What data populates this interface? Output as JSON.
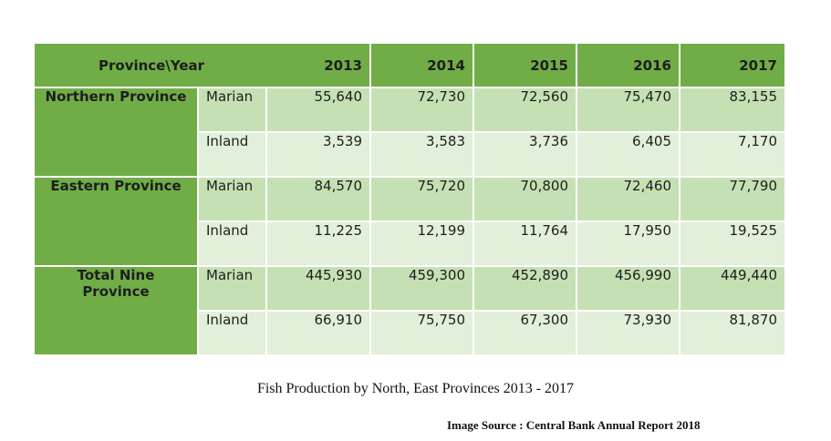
{
  "table": {
    "corner_label": "Province\\Year",
    "years": [
      "2013",
      "2014",
      "2015",
      "2016",
      "2017"
    ],
    "groups": [
      {
        "province": "Northern Province",
        "rows": [
          {
            "type": "Marian",
            "values": [
              "55,640",
              "72,730",
              "72,560",
              "75,470",
              "83,155"
            ]
          },
          {
            "type": "Inland",
            "values": [
              "3,539",
              "3,583",
              "3,736",
              "6,405",
              "7,170"
            ]
          }
        ]
      },
      {
        "province": "Eastern Province",
        "rows": [
          {
            "type": "Marian",
            "values": [
              "84,570",
              "75,720",
              "70,800",
              "72,460",
              "77,790"
            ]
          },
          {
            "type": "Inland",
            "values": [
              "11,225",
              "12,199",
              "11,764",
              "17,950",
              "19,525"
            ]
          }
        ]
      },
      {
        "province": "Total Nine Province",
        "rows": [
          {
            "type": "Marian",
            "values": [
              "445,930",
              "459,300",
              "452,890",
              "456,990",
              "449,440"
            ]
          },
          {
            "type": "Inland",
            "values": [
              "66,910",
              "75,750",
              "67,300",
              "73,930",
              "81,870"
            ]
          }
        ]
      }
    ],
    "colors": {
      "header_green": "#70ad47",
      "row_dark": "#c5e0b3",
      "row_light": "#e2efda"
    }
  },
  "caption": "Fish Production by North, East Provinces 2013 - 2017",
  "source": "Image Source : Central Bank Annual Report 2018"
}
